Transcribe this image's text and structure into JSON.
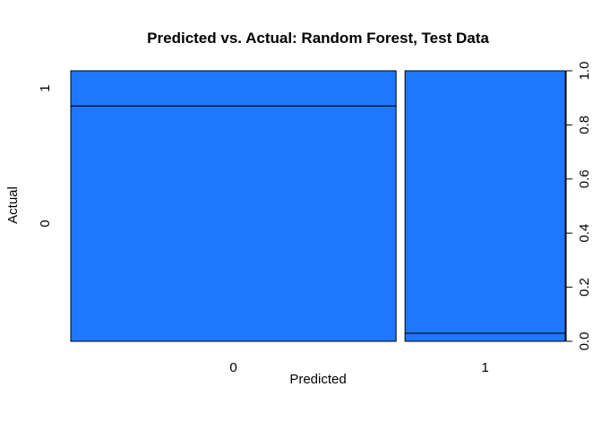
{
  "chart_data": {
    "type": "mosaic",
    "title": "Predicted vs. Actual: Random Forest, Test Data",
    "xlabel": "Predicted",
    "ylabel": "Actual",
    "x_categories": [
      "0",
      "1"
    ],
    "y_categories": [
      "0",
      "1"
    ],
    "x_widths": [
      0.67,
      0.33
    ],
    "conditional_proportions": [
      {
        "predicted": "0",
        "actual_0": 0.87,
        "actual_1": 0.13
      },
      {
        "predicted": "1",
        "actual_0": 0.03,
        "actual_1": 0.97
      }
    ],
    "right_axis": {
      "ylim": [
        0,
        1
      ],
      "ticks": [
        "0.0",
        "0.2",
        "0.4",
        "0.6",
        "0.8",
        "1.0"
      ]
    },
    "fill_color": "#1E78FF",
    "border_color": "#000000"
  }
}
